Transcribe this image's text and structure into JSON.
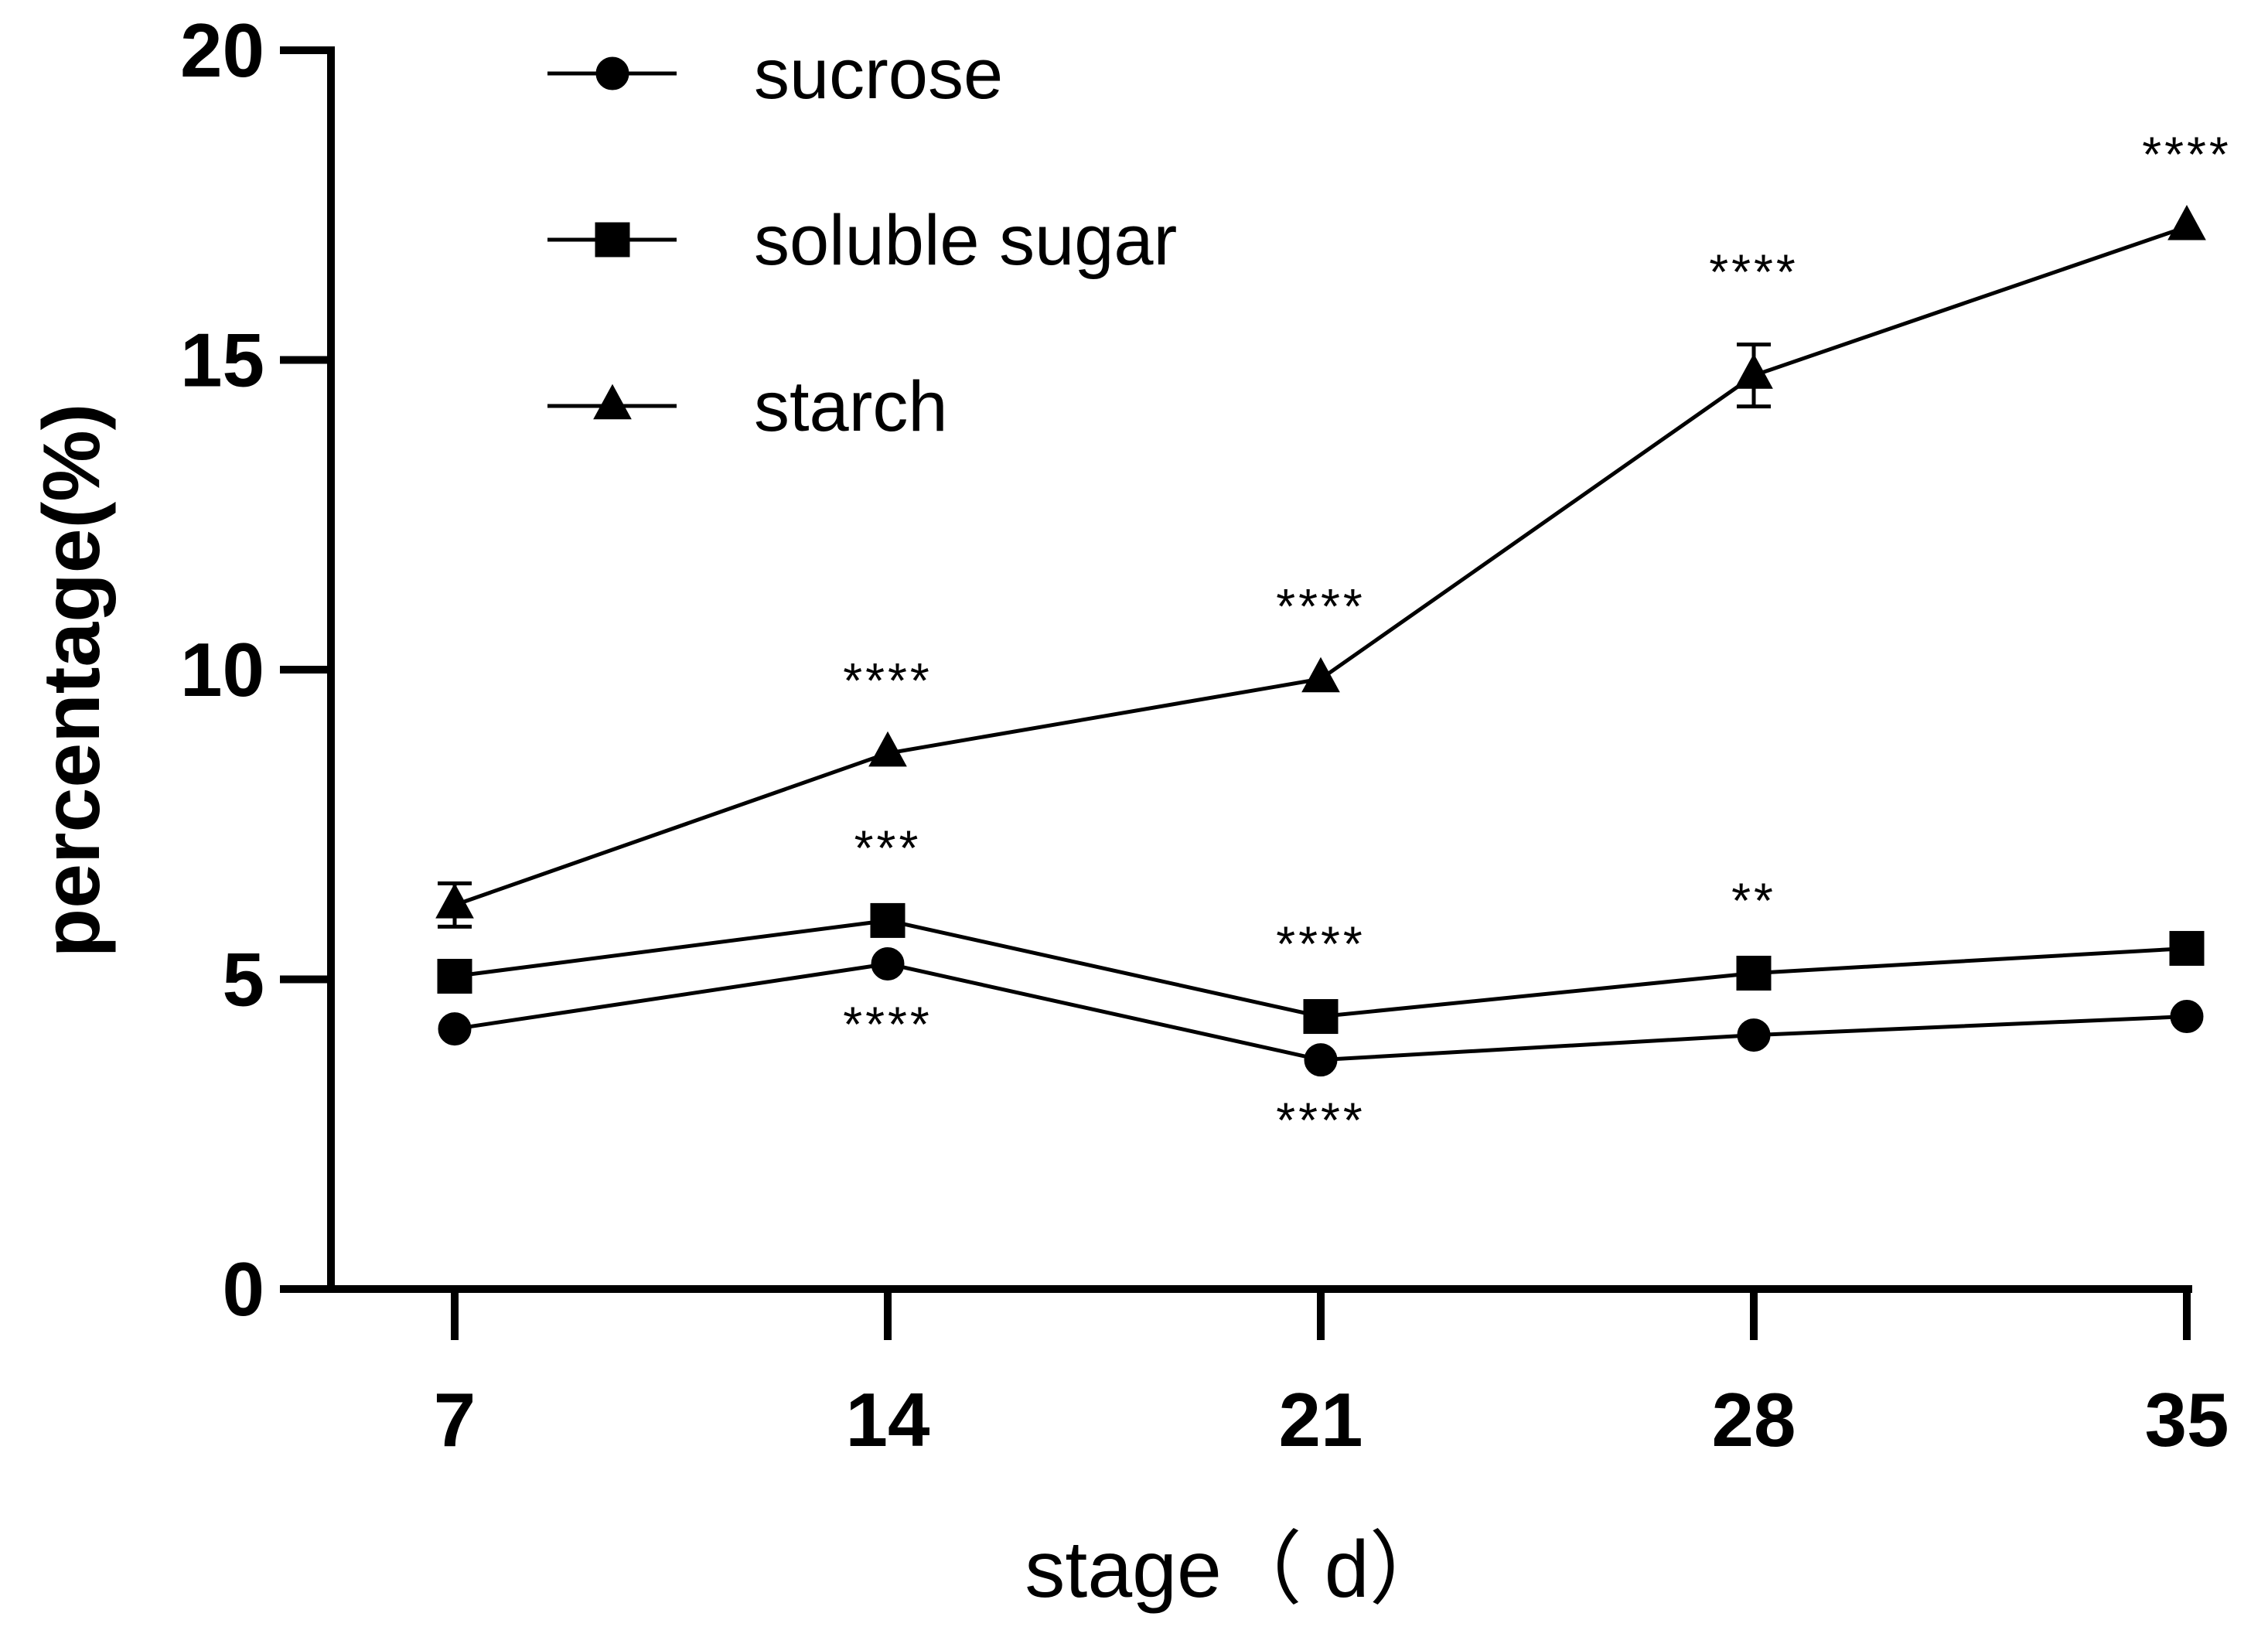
{
  "chart_data": {
    "type": "line",
    "xlabel": "stage（ d）",
    "ylabel": "percentage(%)",
    "x": [
      7,
      14,
      21,
      28,
      35
    ],
    "x_tick_labels": [
      "7",
      "14",
      "21",
      "28",
      "35"
    ],
    "y_ticks": [
      "0",
      "5",
      "10",
      "15",
      "20"
    ],
    "ylim": [
      0,
      20
    ],
    "grid": false,
    "legend_position": "top-left",
    "series": [
      {
        "name": "sucrose",
        "marker": "circle",
        "values": [
          4.2,
          5.25,
          3.7,
          4.1,
          4.4
        ],
        "error": [
          0,
          0,
          0,
          0,
          0
        ],
        "significance": [
          {
            "x": 14,
            "label": "****",
            "position": "below"
          },
          {
            "x": 21,
            "label": "****",
            "position": "below"
          }
        ]
      },
      {
        "name": "soluble sugar",
        "marker": "square",
        "values": [
          5.05,
          5.95,
          4.4,
          5.1,
          5.5
        ],
        "error": [
          0,
          0,
          0,
          0,
          0
        ],
        "significance": [
          {
            "x": 14,
            "label": "***",
            "position": "above"
          },
          {
            "x": 21,
            "label": "****",
            "position": "above"
          },
          {
            "x": 28,
            "label": "**",
            "position": "above"
          }
        ]
      },
      {
        "name": "starch",
        "marker": "triangle",
        "values": [
          6.2,
          8.65,
          9.85,
          14.75,
          17.15
        ],
        "error": [
          0.35,
          0,
          0,
          0.5,
          0
        ],
        "significance": [
          {
            "x": 14,
            "label": "****",
            "position": "above"
          },
          {
            "x": 21,
            "label": "****",
            "position": "above"
          },
          {
            "x": 28,
            "label": "****",
            "position": "above"
          },
          {
            "x": 35,
            "label": "****",
            "position": "above"
          }
        ]
      }
    ]
  }
}
